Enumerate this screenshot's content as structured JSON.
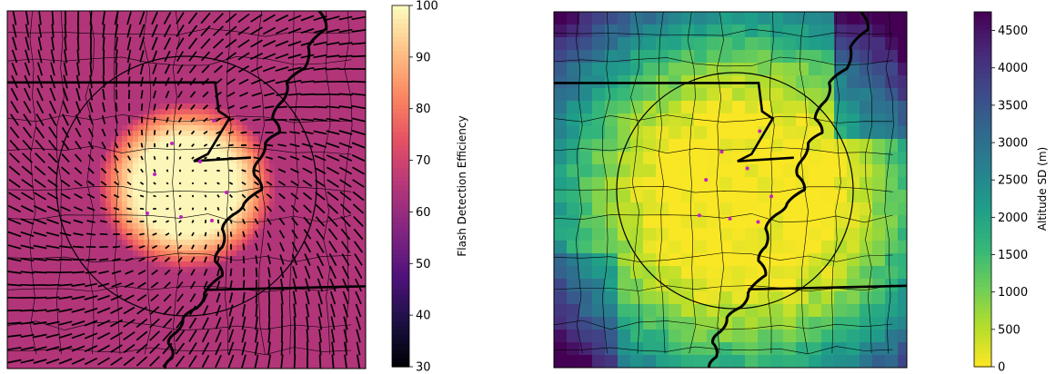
{
  "panels": [
    {
      "id": "left",
      "colorbar": {
        "label": "Flash Detection Efficiency",
        "ticks": [
          "100",
          "90",
          "80",
          "70",
          "60",
          "50",
          "40",
          "30"
        ],
        "min": 30,
        "max": 100,
        "colormap": [
          "#000004",
          "#1c1044",
          "#4f127b",
          "#812581",
          "#b5367a",
          "#e55064",
          "#fb8761",
          "#fec287",
          "#fcfdbf"
        ]
      },
      "has_wind_barbs": true
    },
    {
      "id": "right",
      "colorbar": {
        "label": "Altitude SD (m)",
        "ticks": [
          "4500",
          "4000",
          "3500",
          "3000",
          "2500",
          "2000",
          "1500",
          "1000",
          "500",
          "0"
        ],
        "min": 0,
        "max": 4750,
        "colormap": [
          "#fde725",
          "#b5de2b",
          "#6ece58",
          "#35b779",
          "#1f9e89",
          "#26828e",
          "#31688e",
          "#3e4989",
          "#482878",
          "#440154"
        ]
      },
      "has_wind_barbs": false
    }
  ],
  "colors": {
    "sensor_dot": "#c31fc3",
    "borders": "#000000"
  }
}
